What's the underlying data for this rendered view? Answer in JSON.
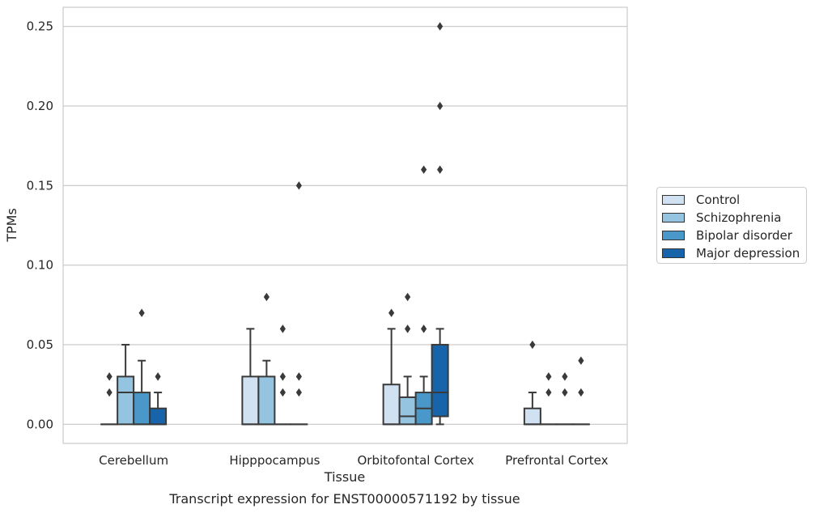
{
  "chart_data": {
    "type": "box",
    "title": "Transcript expression for ENST00000571192 by tissue",
    "xlabel": "Tissue",
    "ylabel": "TPMs",
    "ylim": [
      -0.012,
      0.262
    ],
    "yticks": [
      0.0,
      0.05,
      0.1,
      0.15,
      0.2,
      0.25
    ],
    "ytick_labels": [
      "0.00",
      "0.05",
      "0.10",
      "0.15",
      "0.20",
      "0.25"
    ],
    "grid": true,
    "legend_position": "right",
    "categories": [
      "Cerebellum",
      "Hipppocampus",
      "Orbitofontal Cortex",
      "Prefrontal Cortex"
    ],
    "series": [
      {
        "name": "Control",
        "color": "#d0e1f2",
        "boxes": [
          {
            "q1": 0,
            "median": 0,
            "q3": 0,
            "whisker_low": 0,
            "whisker_high": 0,
            "outliers": [
              0.02,
              0.03
            ]
          },
          {
            "q1": 0,
            "median": 0,
            "q3": 0.03,
            "whisker_low": 0,
            "whisker_high": 0.06,
            "outliers": []
          },
          {
            "q1": 0,
            "median": 0,
            "q3": 0.025,
            "whisker_low": 0,
            "whisker_high": 0.06,
            "outliers": [
              0.07
            ]
          },
          {
            "q1": 0,
            "median": 0,
            "q3": 0.01,
            "whisker_low": 0,
            "whisker_high": 0.02,
            "outliers": [
              0.05
            ]
          }
        ]
      },
      {
        "name": "Schizophrenia",
        "color": "#94c4df",
        "boxes": [
          {
            "q1": 0,
            "median": 0.02,
            "q3": 0.03,
            "whisker_low": 0,
            "whisker_high": 0.05,
            "outliers": []
          },
          {
            "q1": 0,
            "median": 0,
            "q3": 0.03,
            "whisker_low": 0,
            "whisker_high": 0.04,
            "outliers": [
              0.08
            ]
          },
          {
            "q1": 0,
            "median": 0.005,
            "q3": 0.017,
            "whisker_low": 0,
            "whisker_high": 0.03,
            "outliers": [
              0.06,
              0.08
            ]
          },
          {
            "q1": 0,
            "median": 0,
            "q3": 0,
            "whisker_low": 0,
            "whisker_high": 0,
            "outliers": [
              0.02,
              0.03
            ]
          }
        ]
      },
      {
        "name": "Bipolar disorder",
        "color": "#4a98c9",
        "boxes": [
          {
            "q1": 0,
            "median": 0,
            "q3": 0.02,
            "whisker_low": 0,
            "whisker_high": 0.04,
            "outliers": [
              0.07
            ]
          },
          {
            "q1": 0,
            "median": 0,
            "q3": 0,
            "whisker_low": 0,
            "whisker_high": 0,
            "outliers": [
              0.02,
              0.03,
              0.06
            ]
          },
          {
            "q1": 0,
            "median": 0.01,
            "q3": 0.02,
            "whisker_low": 0,
            "whisker_high": 0.03,
            "outliers": [
              0.06,
              0.16
            ]
          },
          {
            "q1": 0,
            "median": 0,
            "q3": 0,
            "whisker_low": 0,
            "whisker_high": 0,
            "outliers": [
              0.02,
              0.03
            ]
          }
        ]
      },
      {
        "name": "Major depression",
        "color": "#1764ab",
        "boxes": [
          {
            "q1": 0,
            "median": 0,
            "q3": 0.01,
            "whisker_low": 0,
            "whisker_high": 0.02,
            "outliers": [
              0.03
            ]
          },
          {
            "q1": 0,
            "median": 0,
            "q3": 0,
            "whisker_low": 0,
            "whisker_high": 0,
            "outliers": [
              0.02,
              0.03,
              0.15
            ]
          },
          {
            "q1": 0.005,
            "median": 0.02,
            "q3": 0.05,
            "whisker_low": 0,
            "whisker_high": 0.06,
            "outliers": [
              0.16,
              0.2,
              0.25
            ]
          },
          {
            "q1": 0,
            "median": 0,
            "q3": 0,
            "whisker_low": 0,
            "whisker_high": 0,
            "outliers": [
              0.02,
              0.04
            ]
          }
        ]
      }
    ]
  }
}
